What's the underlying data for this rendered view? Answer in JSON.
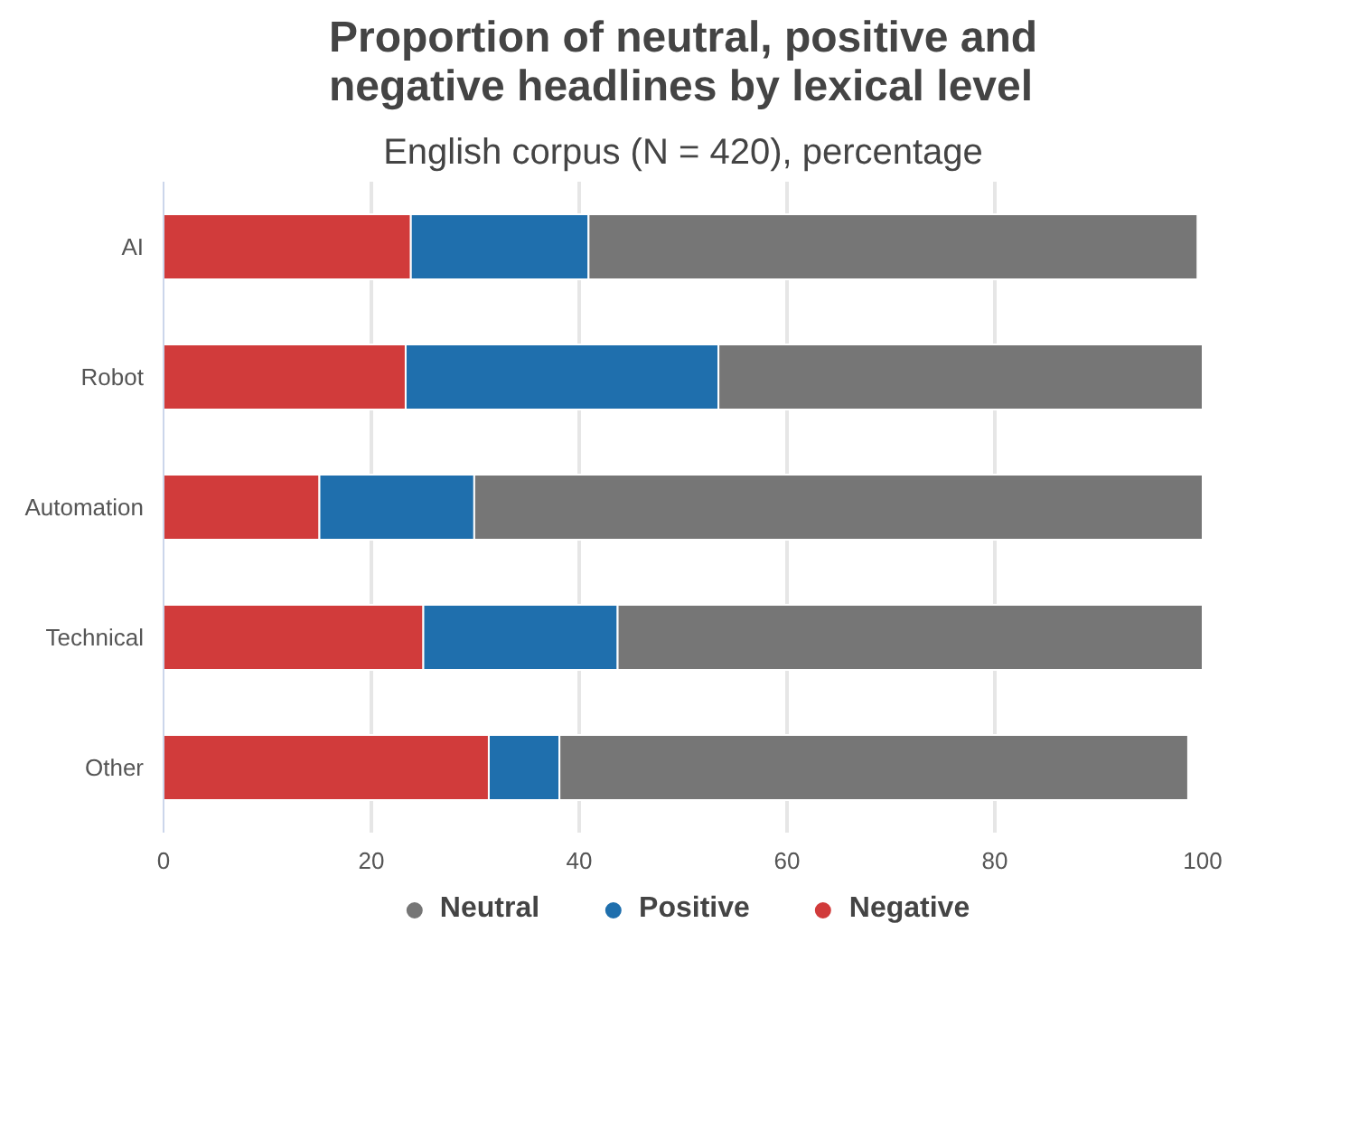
{
  "chart_data": {
    "type": "bar",
    "orientation": "horizontal",
    "stacked": true,
    "title": "Proportion of neutral, positive and negative headlines by lexical level",
    "subtitle": "English corpus (N = 420), percentage",
    "categories": [
      "AI",
      "Robot",
      "Automation",
      "Technical",
      "Other"
    ],
    "series": [
      {
        "name": "Negative",
        "color": "#d13b3b",
        "values": [
          23.8,
          23.3,
          15.0,
          25.0,
          31.3
        ]
      },
      {
        "name": "Positive",
        "color": "#1f6fad",
        "values": [
          17.1,
          30.1,
          14.9,
          18.7,
          6.8
        ]
      },
      {
        "name": "Neutral",
        "color": "#767676",
        "values": [
          58.6,
          46.6,
          70.1,
          56.3,
          60.5
        ]
      }
    ],
    "xlim": [
      0,
      100
    ],
    "xticks": [
      0,
      20,
      40,
      60,
      80,
      100
    ],
    "grid": "x",
    "legend": "bottom"
  }
}
